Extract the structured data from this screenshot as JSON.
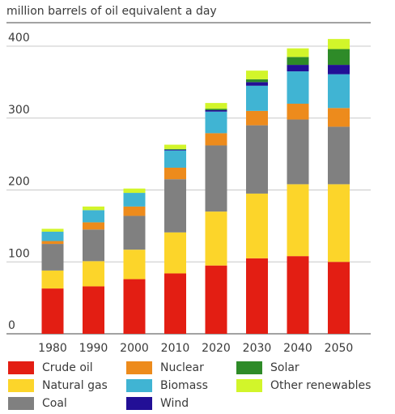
{
  "chart_data": {
    "type": "bar",
    "stacked": true,
    "ylabel": "million barrels of oil equivalent a day",
    "ylim": [
      0,
      400
    ],
    "yticks": [
      0,
      100,
      200,
      300,
      400
    ],
    "grid": true,
    "legend_position": "bottom",
    "categories": [
      "1980",
      "1990",
      "2000",
      "2010",
      "2020",
      "2030",
      "2040",
      "2050"
    ],
    "series": [
      {
        "name": "Crude oil",
        "color": "#e31e13",
        "values": [
          63,
          66,
          76,
          84,
          95,
          105,
          108,
          100
        ]
      },
      {
        "name": "Natural gas",
        "color": "#fcd52a",
        "values": [
          25,
          35,
          41,
          57,
          75,
          90,
          100,
          108
        ]
      },
      {
        "name": "Coal",
        "color": "#808080",
        "values": [
          37,
          44,
          47,
          74,
          92,
          95,
          90,
          80
        ]
      },
      {
        "name": "Nuclear",
        "color": "#ed8b1c",
        "values": [
          4,
          10,
          13,
          16,
          17,
          20,
          22,
          26
        ]
      },
      {
        "name": "Biomass",
        "color": "#40b4d3",
        "values": [
          13,
          17,
          19,
          24,
          30,
          35,
          45,
          47
        ]
      },
      {
        "name": "Wind",
        "color": "#220f96",
        "values": [
          0,
          0,
          0,
          1,
          2,
          5,
          9,
          13
        ]
      },
      {
        "name": "Solar",
        "color": "#2e8b28",
        "values": [
          0,
          0,
          0,
          1,
          2,
          4,
          11,
          22
        ]
      },
      {
        "name": "Other renewables",
        "color": "#d2f52a",
        "values": [
          4,
          5,
          6,
          6,
          8,
          12,
          12,
          14
        ]
      }
    ]
  }
}
